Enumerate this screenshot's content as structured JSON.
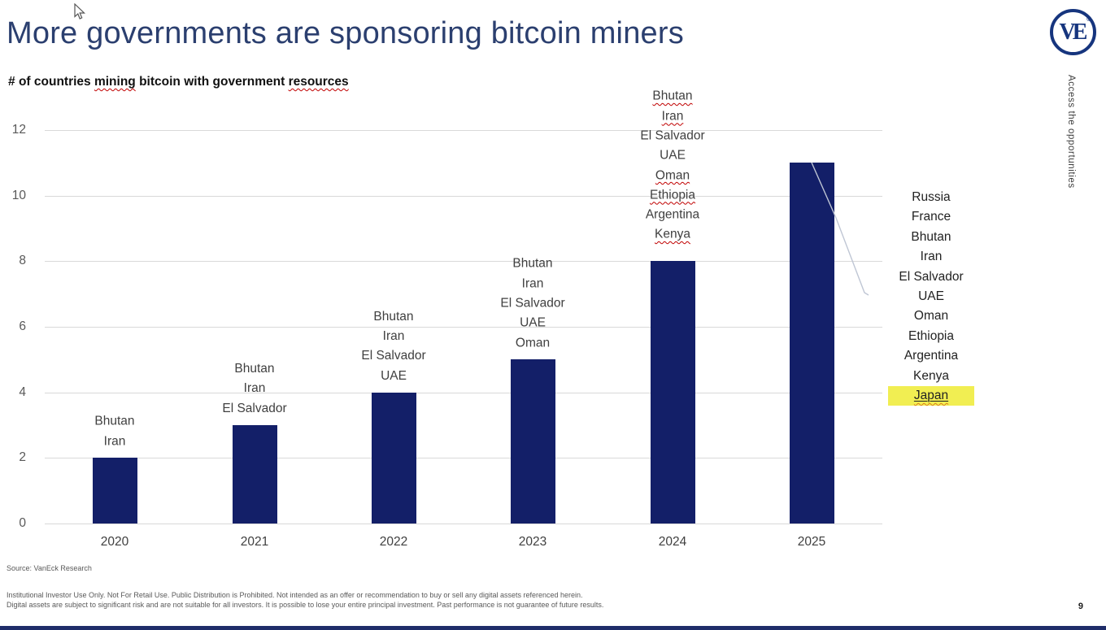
{
  "slide": {
    "title": "More governments are sponsoring bitcoin miners",
    "side_text": "Access the opportunities",
    "logo": {
      "text": "VE",
      "registered_mark": "®"
    },
    "source": "Source: VanEck Research",
    "disclaimer_lines": [
      "Institutional Investor Use Only. Not For Retail Use. Public Distribution is Prohibited. Not intended as an offer or recommendation to buy or sell any digital assets referenced herein.",
      "Digital assets are subject to significant risk and are not suitable for all investors. It is possible to lose your entire principal investment. Past performance is not guarantee of future results."
    ],
    "page_number": "9"
  },
  "chart_data": {
    "type": "bar",
    "title": "# of countries mining bitcoin with government resources",
    "title_spellcheck_words": [
      "mining",
      "resources"
    ],
    "categories": [
      "2020",
      "2021",
      "2022",
      "2023",
      "2024",
      "2025"
    ],
    "values": [
      2,
      3,
      4,
      5,
      8,
      11
    ],
    "bar_labels": [
      [
        "Bhutan",
        "Iran"
      ],
      [
        "Bhutan",
        "Iran",
        "El Salvador"
      ],
      [
        "Bhutan",
        "Iran",
        "El Salvador",
        "UAE"
      ],
      [
        "Bhutan",
        "Iran",
        "El Salvador",
        "UAE",
        "Oman"
      ],
      [
        "Bhutan",
        "Iran",
        "El Salvador",
        "UAE",
        "Oman",
        "Ethiopia",
        "Argentina",
        "Kenya"
      ],
      []
    ],
    "bar_label_spellcheck": [
      [],
      [],
      [],
      [],
      [
        "Bhutan",
        "Iran",
        "Oman",
        "Ethiopia",
        "Kenya"
      ],
      []
    ],
    "xlabel": "",
    "ylabel": "",
    "ylim": [
      0,
      12
    ],
    "yticks": [
      0,
      2,
      4,
      6,
      8,
      10,
      12
    ],
    "grid": true,
    "legend": false,
    "bar_color": "#131f68",
    "annotation_2025": {
      "items": [
        "Russia",
        "France",
        "Bhutan",
        "Iran",
        "El Salvador",
        "UAE",
        "Oman",
        "Ethiopia",
        "Argentina",
        "Kenya",
        "Japan"
      ],
      "highlighted_item": "Japan",
      "highlight_color": "#f1ee52"
    }
  },
  "colors": {
    "title": "#2b3f6f",
    "bar": "#131f68",
    "highlight": "#f1ee52",
    "gridline": "#d9d9d9",
    "axis_text": "#595959",
    "label_text": "#404040",
    "footer_bar": "#1f2d69",
    "logo": "#16357e"
  }
}
